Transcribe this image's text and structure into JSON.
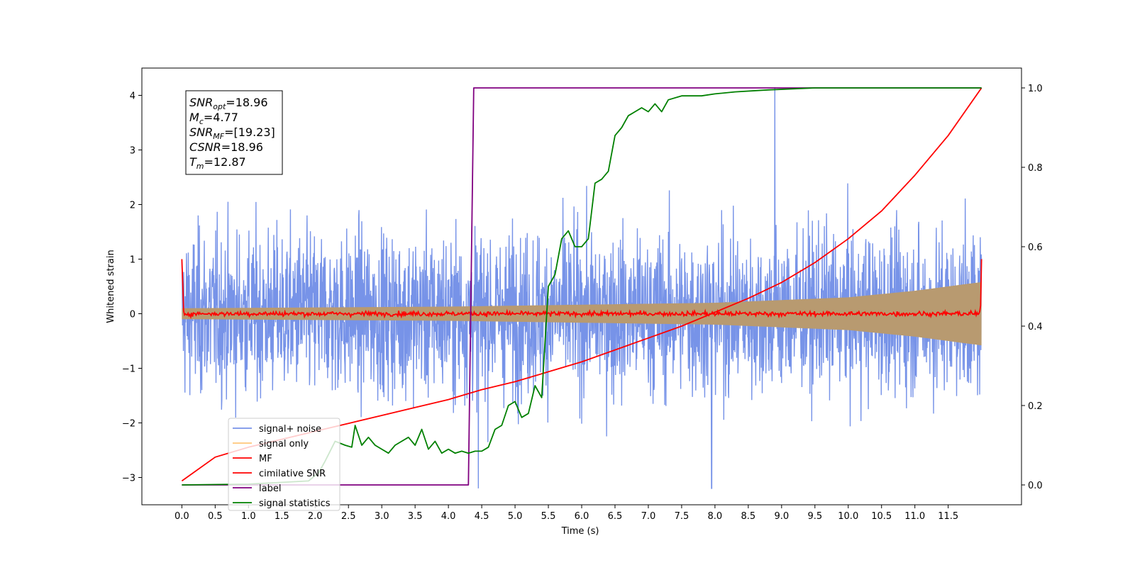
{
  "chart_data": {
    "type": "line",
    "xlabel": "Time (s)",
    "ylabel": "Whitened strain",
    "xlim": [
      -0.6,
      12.6
    ],
    "ylim": [
      -3.5,
      4.5
    ],
    "y2lim": [
      -0.05,
      1.05
    ],
    "xticks": [
      "0.0",
      "0.5",
      "1.0",
      "1.5",
      "2.0",
      "2.5",
      "3.0",
      "3.5",
      "4.0",
      "4.5",
      "5.0",
      "5.5",
      "6.0",
      "6.5",
      "7.0",
      "7.5",
      "8.0",
      "8.5",
      "9.0",
      "9.5",
      "10.0",
      "10.5",
      "11.0",
      "11.5"
    ],
    "yticks": [
      "−3",
      "−2",
      "−1",
      "0",
      "1",
      "2",
      "3",
      "4"
    ],
    "y2ticks": [
      "0.0",
      "0.2",
      "0.4",
      "0.6",
      "0.8",
      "1.0"
    ],
    "annotation": [
      {
        "main": "SNR",
        "sub": "opt",
        "rest": "=18.96"
      },
      {
        "main": "M",
        "sub": "c",
        "rest": "=4.77"
      },
      {
        "main": "SNR",
        "sub": "MF",
        "rest": "=[19.23]"
      },
      {
        "main": "CSNR",
        "sub": "",
        "rest": "=18.96"
      },
      {
        "main": "T",
        "sub": "m",
        "rest": "=12.87"
      }
    ],
    "legend_position": "lower-left",
    "series": [
      {
        "name": "signal+ noise",
        "color": "#7793e8",
        "axis": "left",
        "style": "noisy strain, amplitude ~±3, spikes to 4.2 near t=8.9",
        "x_range": [
          0,
          12.0
        ]
      },
      {
        "name": "signal only",
        "color": "#ffc77a",
        "axis": "left",
        "style": "chirp envelope",
        "envelope": {
          "x": [
            0,
            4,
            8,
            10,
            11,
            12
          ],
          "amplitude": [
            0.1,
            0.13,
            0.2,
            0.3,
            0.42,
            0.58
          ]
        }
      },
      {
        "name": "MF",
        "color": "#ff0000",
        "axis": "left",
        "style": "near-zero jitter with edge spikes to 1.0 at t=0 and t=12"
      },
      {
        "name": "cimilative SNR",
        "color": "#ff0000",
        "axis": "right",
        "x": [
          0,
          0.5,
          1,
          1.5,
          2,
          2.5,
          3,
          3.5,
          4,
          4.5,
          5,
          5.5,
          6,
          6.5,
          7,
          7.5,
          8,
          8.5,
          9,
          9.5,
          10,
          10.5,
          11,
          11.5,
          12
        ],
        "y": [
          0.01,
          0.07,
          0.095,
          0.115,
          0.135,
          0.155,
          0.175,
          0.195,
          0.215,
          0.24,
          0.26,
          0.285,
          0.31,
          0.34,
          0.37,
          0.4,
          0.435,
          0.47,
          0.51,
          0.56,
          0.62,
          0.69,
          0.78,
          0.88,
          1.0
        ]
      },
      {
        "name": "label",
        "color": "#800080",
        "axis": "right",
        "x": [
          0,
          4.3,
          4.38,
          12.0
        ],
        "y": [
          0.0,
          0.0,
          1.0,
          1.0
        ]
      },
      {
        "name": "signal statistics",
        "color": "#008000",
        "axis": "right",
        "x": [
          0,
          1.0,
          1.9,
          2.05,
          2.15,
          2.3,
          2.45,
          2.55,
          2.6,
          2.7,
          2.8,
          2.9,
          3.0,
          3.1,
          3.2,
          3.3,
          3.4,
          3.5,
          3.6,
          3.7,
          3.8,
          3.9,
          4.0,
          4.1,
          4.2,
          4.3,
          4.4,
          4.5,
          4.6,
          4.7,
          4.8,
          4.9,
          5.0,
          5.1,
          5.2,
          5.3,
          5.4,
          5.5,
          5.6,
          5.7,
          5.8,
          5.9,
          6.0,
          6.1,
          6.2,
          6.3,
          6.4,
          6.5,
          6.6,
          6.7,
          6.8,
          6.9,
          7.0,
          7.1,
          7.2,
          7.3,
          7.5,
          7.8,
          8.0,
          8.3,
          8.8,
          9.5,
          10.5,
          11.5,
          12.0
        ],
        "y": [
          0.0,
          0.002,
          0.01,
          0.03,
          0.06,
          0.11,
          0.1,
          0.095,
          0.15,
          0.1,
          0.12,
          0.1,
          0.09,
          0.08,
          0.1,
          0.11,
          0.12,
          0.1,
          0.14,
          0.09,
          0.11,
          0.08,
          0.09,
          0.08,
          0.085,
          0.08,
          0.085,
          0.085,
          0.095,
          0.14,
          0.15,
          0.2,
          0.21,
          0.17,
          0.18,
          0.25,
          0.22,
          0.5,
          0.53,
          0.62,
          0.64,
          0.6,
          0.6,
          0.62,
          0.76,
          0.77,
          0.79,
          0.88,
          0.9,
          0.93,
          0.94,
          0.95,
          0.94,
          0.96,
          0.94,
          0.97,
          0.98,
          0.98,
          0.985,
          0.99,
          0.995,
          1.0,
          1.0,
          1.0,
          1.0
        ]
      }
    ]
  }
}
